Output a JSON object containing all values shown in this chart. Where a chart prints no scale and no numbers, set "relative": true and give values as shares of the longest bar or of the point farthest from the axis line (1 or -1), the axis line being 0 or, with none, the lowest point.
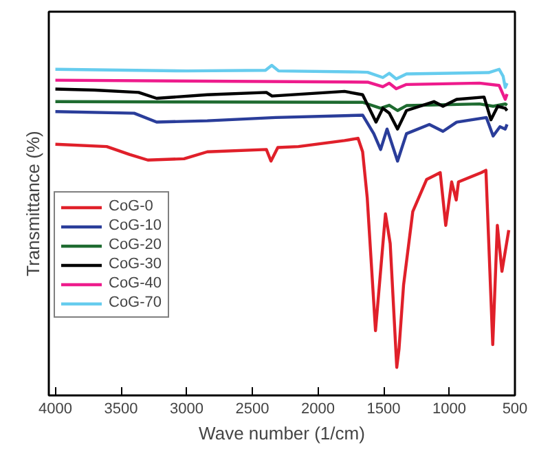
{
  "chart_data": {
    "type": "line",
    "xlabel": "Wave number (1/cm)",
    "ylabel": "Transmittance (%)",
    "relative": true,
    "xlim": [
      4050,
      500
    ],
    "xticks": [
      4000,
      3500,
      3000,
      2500,
      2000,
      1500,
      1000,
      500
    ],
    "grid": false,
    "legend": "left",
    "series": [
      {
        "name": "CoG-0",
        "color": "#e0202a",
        "x": [
          4000,
          3609,
          3435,
          3296,
          3020,
          2843,
          2393,
          2358,
          2306,
          2149,
          1798,
          1695,
          1660,
          1625,
          1562,
          1486,
          1450,
          1400,
          1383,
          1348,
          1278,
          1173,
          1069,
          1027,
          982,
          947,
          930,
          756,
          721,
          669,
          634,
          599,
          547
        ],
        "values": [
          0.761,
          0.754,
          0.73,
          0.713,
          0.717,
          0.738,
          0.745,
          0.71,
          0.751,
          0.754,
          0.772,
          0.779,
          0.738,
          0.599,
          0.196,
          0.55,
          0.46,
          0.085,
          0.14,
          0.335,
          0.557,
          0.654,
          0.675,
          0.515,
          0.647,
          0.592,
          0.647,
          0.675,
          0.682,
          0.154,
          0.515,
          0.376,
          0.501
        ]
      },
      {
        "name": "CoG-10",
        "color": "#2a3d9a",
        "x": [
          4000,
          3400,
          3229,
          2843,
          2323,
          1660,
          1575,
          1523,
          1474,
          1394,
          1326,
          1152,
          1048,
          944,
          718,
          666,
          614,
          574,
          560
        ],
        "values": [
          0.86,
          0.855,
          0.828,
          0.832,
          0.842,
          0.849,
          0.793,
          0.745,
          0.807,
          0.71,
          0.793,
          0.821,
          0.8,
          0.828,
          0.842,
          0.786,
          0.814,
          0.807,
          0.821
        ]
      },
      {
        "name": "CoG-20",
        "color": "#1e6b30",
        "x": [
          4000,
          3000,
          1660,
          1523,
          1457,
          1394,
          1326,
          770,
          666,
          574,
          560
        ],
        "values": [
          0.89,
          0.889,
          0.888,
          0.87,
          0.879,
          0.863,
          0.878,
          0.883,
          0.876,
          0.883,
          0.879
        ]
      },
      {
        "name": "CoG-30",
        "color": "#000000",
        "x": [
          4000,
          3700,
          3366,
          3229,
          2843,
          2393,
          2350,
          1798,
          1660,
          1558,
          1506,
          1457,
          1394,
          1326,
          1117,
          1048,
          944,
          735,
          683,
          631,
          574,
          560
        ],
        "values": [
          0.928,
          0.925,
          0.918,
          0.9,
          0.911,
          0.918,
          0.907,
          0.921,
          0.911,
          0.828,
          0.87,
          0.855,
          0.807,
          0.863,
          0.89,
          0.876,
          0.897,
          0.904,
          0.835,
          0.876,
          0.87,
          0.863
        ]
      },
      {
        "name": "CoG-40",
        "color": "#ee1b8c",
        "x": [
          4000,
          1622,
          1506,
          1457,
          1404,
          1326,
          770,
          620,
          574,
          560
        ],
        "values": [
          0.955,
          0.949,
          0.935,
          0.946,
          0.929,
          0.942,
          0.946,
          0.939,
          0.897,
          0.913
        ]
      },
      {
        "name": "CoG-70",
        "color": "#66ccee",
        "x": [
          4000,
          3000,
          2400,
          2352,
          2300,
          1700,
          1622,
          1506,
          1457,
          1404,
          1326,
          1000,
          700,
          620,
          590,
          574,
          560
        ],
        "values": [
          0.988,
          0.983,
          0.985,
          1.0,
          0.983,
          0.98,
          0.979,
          0.963,
          0.976,
          0.959,
          0.974,
          0.976,
          0.978,
          0.988,
          0.967,
          0.933,
          0.946
        ]
      }
    ]
  }
}
